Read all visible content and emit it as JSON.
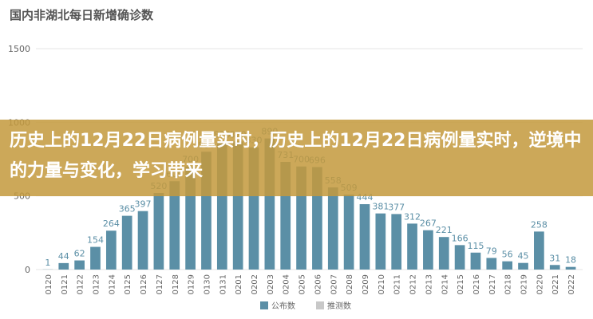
{
  "chart_data": {
    "type": "bar",
    "title": "国内非湖北每日新增确诊数",
    "categories": [
      "0120",
      "0121",
      "0122",
      "0123",
      "0124",
      "0125",
      "0126",
      "0127",
      "0128",
      "0129",
      "0130",
      "0131",
      "0201",
      "0202",
      "0203",
      "0204",
      "0205",
      "0206",
      "0207",
      "0208",
      "0209",
      "0210",
      "0211",
      "0212",
      "0213",
      "0214",
      "0215",
      "0216",
      "0217",
      "0218",
      "0219",
      "0220",
      "0221",
      "0222"
    ],
    "series": [
      {
        "name": "公布数",
        "color": "#5b8fa6",
        "values": [
          1,
          44,
          62,
          154,
          264,
          365,
          397,
          520,
          600,
          700,
          800,
          870,
          870,
          830,
          890,
          731,
          700,
          696,
          558,
          509,
          444,
          381,
          377,
          312,
          267,
          221,
          166,
          115,
          79,
          56,
          45,
          258,
          31,
          18
        ]
      }
    ],
    "legend_extra": [
      {
        "name": "推测数",
        "color": "#c8c8c8"
      }
    ],
    "ylim": [
      0,
      1500
    ],
    "yticks": [
      0,
      500,
      1000,
      1500
    ],
    "grid": true,
    "banner": "历史上的12月22日病例量实时，历史上的12月22日病例量实时，逆境中的力量与变化，学习带来"
  }
}
